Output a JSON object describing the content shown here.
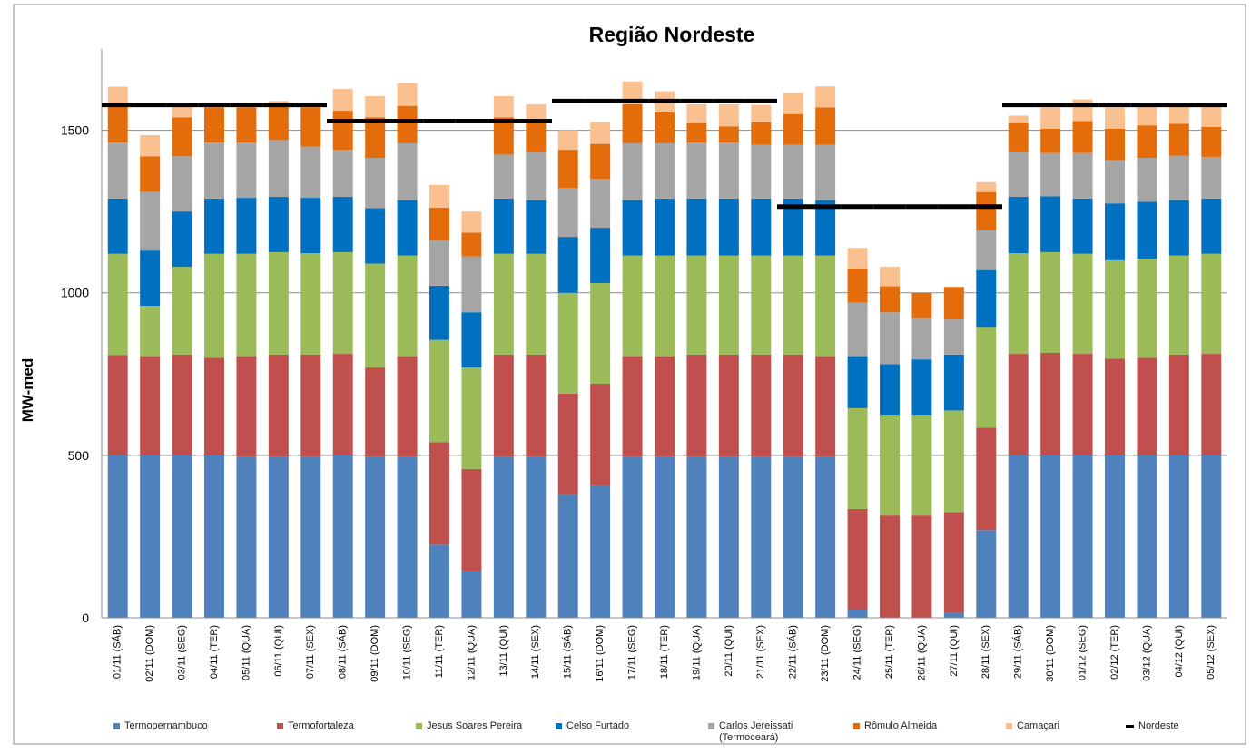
{
  "chart_data": {
    "type": "bar",
    "stacked": true,
    "title": "Região Nordeste",
    "y_label": "MW-med",
    "categories": [
      "01/11 (SÁB)",
      "02/11 (DOM)",
      "03/11 (SEG)",
      "04/11 (TER)",
      "05/11 (QUA)",
      "06/11 (QUI)",
      "07/11 (SEX)",
      "08/11 (SÁB)",
      "09/11 (DOM)",
      "10/11 (SEG)",
      "11/11 (TER)",
      "12/11 (QUA)",
      "13/11 (QUI)",
      "14/11 (SEX)",
      "15/11 (SÁB)",
      "16/11 (DOM)",
      "17/11 (SEG)",
      "18/11 (TER)",
      "19/11 (QUA)",
      "20/11 (QUI)",
      "21/11 (SEX)",
      "22/11 (SÁB)",
      "23/11 (DOM)",
      "24/11 (SEG)",
      "25/11 (TER)",
      "26/11 (QUA)",
      "27/11 (QUI)",
      "28/11 (SEX)",
      "29/11 (SÁB)",
      "30/11 (DOM)",
      "01/12 (SEG)",
      "02/12 (TER)",
      "03/12 (QUA)",
      "04/12 (QUI)",
      "05/12 (SEX)"
    ],
    "series": [
      {
        "name": "Termopernambuco",
        "color": "#4f81bd",
        "values": [
          500,
          500,
          500,
          500,
          495,
          495,
          495,
          500,
          495,
          495,
          225,
          145,
          495,
          495,
          380,
          405,
          495,
          495,
          495,
          495,
          495,
          495,
          495,
          25,
          0,
          0,
          15,
          270,
          500,
          500,
          500,
          500,
          500,
          500,
          500
        ]
      },
      {
        "name": "Termofortaleza",
        "color": "#c0504d",
        "values": [
          308,
          305,
          310,
          300,
          310,
          315,
          315,
          312,
          275,
          310,
          315,
          313,
          315,
          315,
          310,
          315,
          310,
          310,
          315,
          315,
          315,
          315,
          310,
          310,
          315,
          315,
          310,
          315,
          312,
          315,
          312,
          297,
          300,
          310,
          312
        ]
      },
      {
        "name": "Jesus Soares Pereira",
        "color": "#9bbb59",
        "values": [
          312,
          155,
          270,
          320,
          315,
          315,
          312,
          313,
          320,
          310,
          315,
          312,
          310,
          310,
          310,
          310,
          310,
          310,
          305,
          305,
          305,
          305,
          310,
          310,
          310,
          310,
          313,
          310,
          310,
          310,
          308,
          303,
          305,
          305,
          308
        ]
      },
      {
        "name": "Celso Furtado",
        "color": "#0070c0",
        "values": [
          170,
          170,
          170,
          170,
          172,
          170,
          170,
          170,
          170,
          170,
          167,
          170,
          170,
          165,
          172,
          170,
          170,
          175,
          175,
          175,
          175,
          175,
          170,
          160,
          155,
          170,
          172,
          175,
          173,
          172,
          170,
          175,
          175,
          170,
          170
        ]
      },
      {
        "name": "Carlos Jereissati (Termoceará)",
        "color": "#a5a5a5",
        "values": [
          172,
          180,
          170,
          172,
          170,
          175,
          158,
          145,
          155,
          175,
          140,
          172,
          135,
          147,
          150,
          150,
          175,
          170,
          172,
          172,
          165,
          165,
          170,
          165,
          160,
          127,
          108,
          122,
          137,
          133,
          140,
          133,
          135,
          137,
          128
        ]
      },
      {
        "name": "Rômulo Almeida",
        "color": "#e46c0a",
        "values": [
          118,
          110,
          120,
          108,
          108,
          110,
          120,
          120,
          125,
          115,
          100,
          73,
          115,
          98,
          118,
          108,
          120,
          95,
          60,
          50,
          70,
          95,
          115,
          105,
          80,
          78,
          100,
          118,
          90,
          75,
          98,
          97,
          100,
          98,
          92
        ]
      },
      {
        "name": "Camaçari",
        "color": "#fac090",
        "values": [
          54,
          65,
          40,
          10,
          10,
          10,
          15,
          67,
          65,
          70,
          70,
          65,
          65,
          50,
          60,
          67,
          70,
          65,
          58,
          68,
          53,
          65,
          65,
          63,
          60,
          0,
          0,
          30,
          23,
          65,
          67,
          65,
          60,
          58,
          65
        ]
      },
      {
        "name": "Nordeste",
        "type": "line",
        "color": "#000000",
        "values": [
          1578,
          1578,
          1578,
          1578,
          1578,
          1578,
          1578,
          1528,
          1528,
          1528,
          1528,
          1528,
          1528,
          1528,
          1590,
          1590,
          1590,
          1590,
          1590,
          1590,
          1590,
          1265,
          1265,
          1265,
          1265,
          1265,
          1265,
          1265,
          1578,
          1578,
          1578,
          1578,
          1578,
          1578,
          1578
        ]
      }
    ],
    "ylim": [
      0,
      1750
    ],
    "yticks": [
      0,
      500,
      1000,
      1500
    ],
    "grid": true,
    "legend": "bottom"
  }
}
